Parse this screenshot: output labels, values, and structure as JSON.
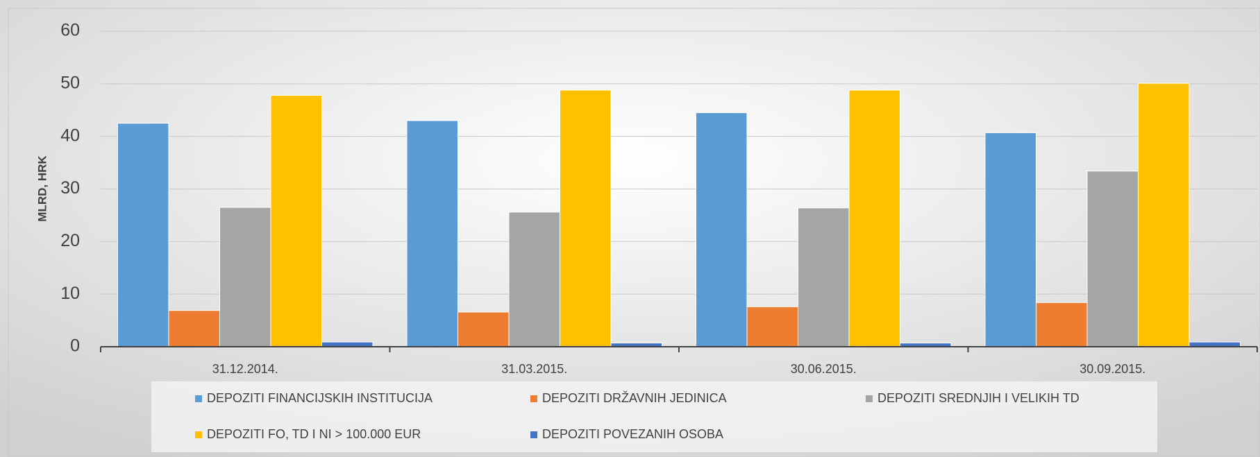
{
  "chart_data": {
    "type": "bar",
    "y_label": "MLRD, HRK",
    "categories": [
      "31.12.2014.",
      "31.03.2015.",
      "30.06.2015.",
      "30.09.2015."
    ],
    "series": [
      {
        "name": "DEPOZITI FINANCIJSKIH INSTITUCIJA",
        "color": "#5B9BD5",
        "values": [
          42.5,
          43,
          44.5,
          40.7
        ]
      },
      {
        "name": "DEPOZITI DRŽAVNIH JEDINICA",
        "color": "#ED7D31",
        "values": [
          6.9,
          6.6,
          7.6,
          8.4
        ]
      },
      {
        "name": "DEPOZITI SREDNJIH I VELIKIH TD",
        "color": "#A5A5A5",
        "values": [
          26.5,
          25.6,
          26.4,
          33.4
        ]
      },
      {
        "name": "DEPOZITI FO, TD I NI > 100.000 EUR",
        "color": "#FFC000",
        "values": [
          47.8,
          48.8,
          48.8,
          50.1
        ]
      },
      {
        "name": "DEPOZITI POVEZANIH OSOBA",
        "color": "#4472C4",
        "values": [
          0.9,
          0.7,
          0.7,
          0.9
        ]
      }
    ],
    "ylim": [
      0,
      60
    ],
    "yticks": [
      0,
      10,
      20,
      30,
      40,
      50,
      60
    ],
    "grid": true,
    "legend": "bottom"
  }
}
